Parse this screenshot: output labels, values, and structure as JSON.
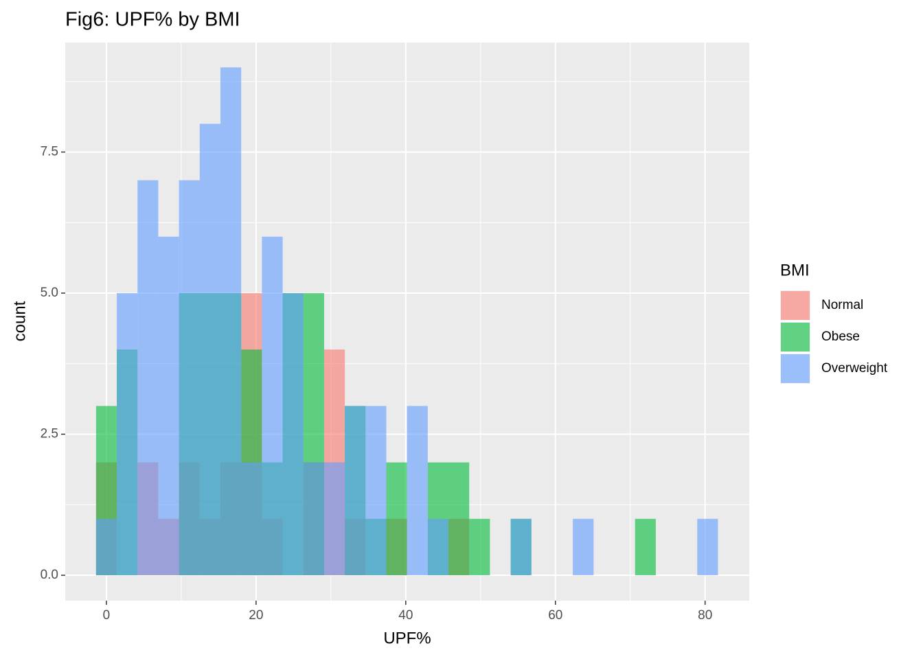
{
  "chart_data": {
    "type": "histogram",
    "title": "Fig6: UPF% by BMI",
    "x_label": "UPF%",
    "y_label": "count",
    "legend_title": "BMI",
    "bins": [
      -1.38,
      1.39,
      4.16,
      6.93,
      9.7,
      12.47,
      15.24,
      18.01,
      20.78,
      23.55,
      26.32,
      29.09,
      31.86,
      34.63,
      37.4,
      40.17,
      42.94,
      45.71,
      48.48,
      51.25,
      54.02,
      56.79,
      59.56,
      62.33,
      65.1,
      67.87,
      70.64,
      73.41,
      76.18,
      78.95,
      81.72
    ],
    "series": [
      {
        "name": "Normal",
        "color": "#F8766D",
        "values": [
          2,
          0,
          2,
          1,
          2,
          1,
          2,
          5,
          1,
          0,
          2,
          4,
          1,
          0,
          1,
          0,
          0,
          1,
          0,
          0,
          0,
          0,
          0,
          0,
          0,
          0,
          0,
          0,
          0,
          0
        ]
      },
      {
        "name": "Obese",
        "color": "#00BA38",
        "values": [
          3,
          4,
          0,
          0,
          5,
          5,
          5,
          4,
          2,
          5,
          5,
          0,
          3,
          1,
          2,
          0,
          2,
          2,
          1,
          0,
          1,
          0,
          0,
          0,
          0,
          0,
          1,
          0,
          0,
          0
        ]
      },
      {
        "name": "Overweight",
        "color": "#619CFF",
        "values": [
          1,
          5,
          7,
          6,
          7,
          8,
          9,
          2,
          6,
          5,
          2,
          2,
          3,
          3,
          0,
          3,
          1,
          0,
          0,
          0,
          1,
          0,
          0,
          1,
          0,
          0,
          0,
          0,
          0,
          1
        ]
      }
    ],
    "opacity": 0.6,
    "xlim": [
      -5.5,
      85.9
    ],
    "ylim": [
      -0.45,
      9.44
    ],
    "xticks": [
      0,
      20,
      40,
      60,
      80
    ],
    "yticks": [
      {
        "value": 0,
        "label": "0.0"
      },
      {
        "value": 2.5,
        "label": "2.5"
      },
      {
        "value": 5,
        "label": "5.0"
      },
      {
        "value": 7.5,
        "label": "7.5"
      }
    ],
    "grid": true,
    "legend_position": "right"
  }
}
